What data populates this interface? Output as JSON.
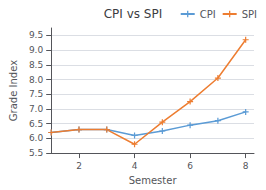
{
  "chart_data": {
    "type": "line",
    "title": "CPI vs SPI",
    "xlabel": "Semester",
    "ylabel": "Grade Index",
    "x": [
      1,
      2,
      3,
      4,
      5,
      6,
      7,
      8
    ],
    "series": [
      {
        "name": "CPI",
        "color": "#5b9bd5",
        "marker": "plus",
        "values": [
          6.2,
          6.3,
          6.3,
          6.1,
          6.25,
          6.45,
          6.6,
          6.9
        ]
      },
      {
        "name": "SPI",
        "color": "#ed7d31",
        "marker": "plus",
        "values": [
          6.2,
          6.3,
          6.3,
          5.8,
          6.55,
          7.25,
          8.05,
          9.35
        ]
      }
    ],
    "xlim": [
      1,
      8.3
    ],
    "xticks": [
      2,
      4,
      6,
      8
    ],
    "ylim": [
      5.5,
      9.75
    ],
    "yticks": [
      5.5,
      {
        "value": 6,
        "label": "6.0"
      },
      6.5,
      {
        "value": 7,
        "label": "7.0"
      },
      7.5,
      {
        "value": 8,
        "label": "8.0"
      },
      8.5,
      {
        "value": 9,
        "label": "9.0"
      },
      9.5
    ],
    "grid": true,
    "legend": "upper right"
  }
}
